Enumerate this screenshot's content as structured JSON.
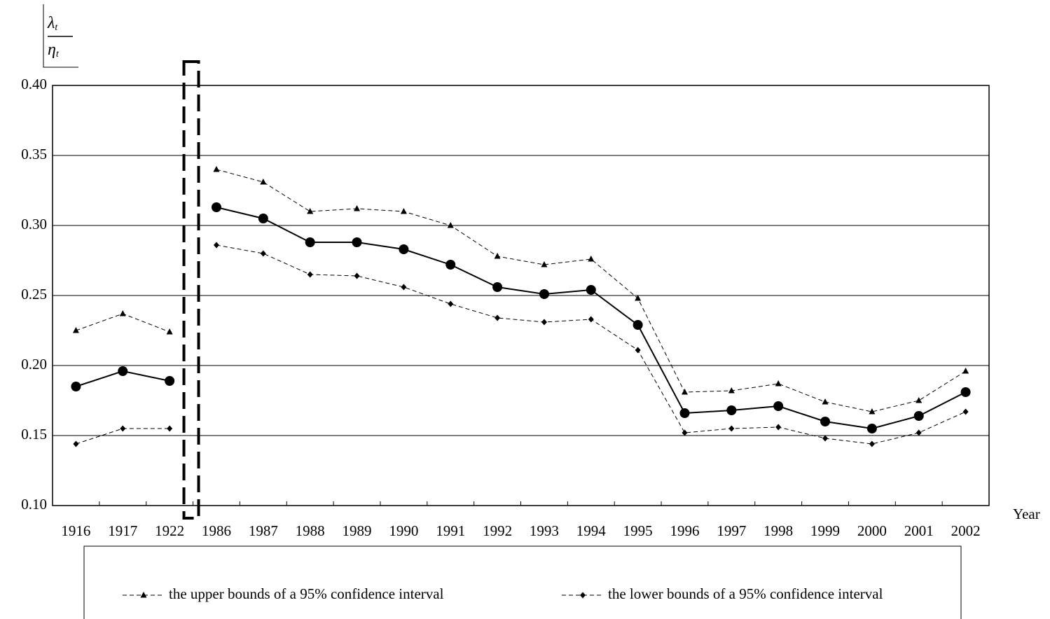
{
  "chart_data": {
    "type": "line",
    "ylabel": {
      "numerator": {
        "symbol": "λ",
        "subscript": "t"
      },
      "denominator": {
        "symbol": "η",
        "subscript": "t"
      }
    },
    "xlabel": "Year",
    "categories": [
      "1916",
      "1917",
      "1922",
      "1986",
      "1987",
      "1988",
      "1989",
      "1990",
      "1991",
      "1992",
      "1993",
      "1994",
      "1995",
      "1996",
      "1997",
      "1998",
      "1999",
      "2000",
      "2001",
      "2002"
    ],
    "break_after_category": 2,
    "series": [
      {
        "name": "the upper bounds of a 95% confidence interval",
        "color": "#000000",
        "marker": "triangle",
        "dashed": true,
        "values": [
          0.225,
          0.237,
          0.224,
          0.34,
          0.331,
          0.31,
          0.312,
          0.31,
          0.3,
          0.278,
          0.272,
          0.276,
          0.248,
          0.181,
          0.182,
          0.187,
          0.174,
          0.167,
          0.175,
          0.196
        ]
      },
      {
        "name": "the lower bounds of a 95% confidence interval",
        "color": "#000000",
        "marker": "diamond",
        "dashed": true,
        "values": [
          0.144,
          0.155,
          0.155,
          0.286,
          0.28,
          0.265,
          0.264,
          0.256,
          0.244,
          0.234,
          0.231,
          0.233,
          0.211,
          0.152,
          0.155,
          0.156,
          0.148,
          0.144,
          0.152,
          0.167
        ]
      },
      {
        "color": "#000000",
        "marker": "circle",
        "dashed": false,
        "values": [
          0.185,
          0.196,
          0.189,
          0.313,
          0.305,
          0.288,
          0.288,
          0.283,
          0.272,
          0.256,
          0.251,
          0.254,
          0.229,
          0.166,
          0.168,
          0.171,
          0.16,
          0.155,
          0.164,
          0.181
        ]
      }
    ],
    "ylim": [
      0.1,
      0.4
    ],
    "yticks": [
      {
        "value": 0.1,
        "label": "0.10"
      },
      {
        "value": 0.15,
        "label": "0.15"
      },
      {
        "value": 0.2,
        "label": "0.20"
      },
      {
        "value": 0.25,
        "label": "0.25"
      },
      {
        "value": 0.3,
        "label": "0.30"
      },
      {
        "value": 0.35,
        "label": "0.35"
      },
      {
        "value": 0.4,
        "label": "0.40"
      }
    ],
    "grid": true,
    "legend": "bottom"
  }
}
